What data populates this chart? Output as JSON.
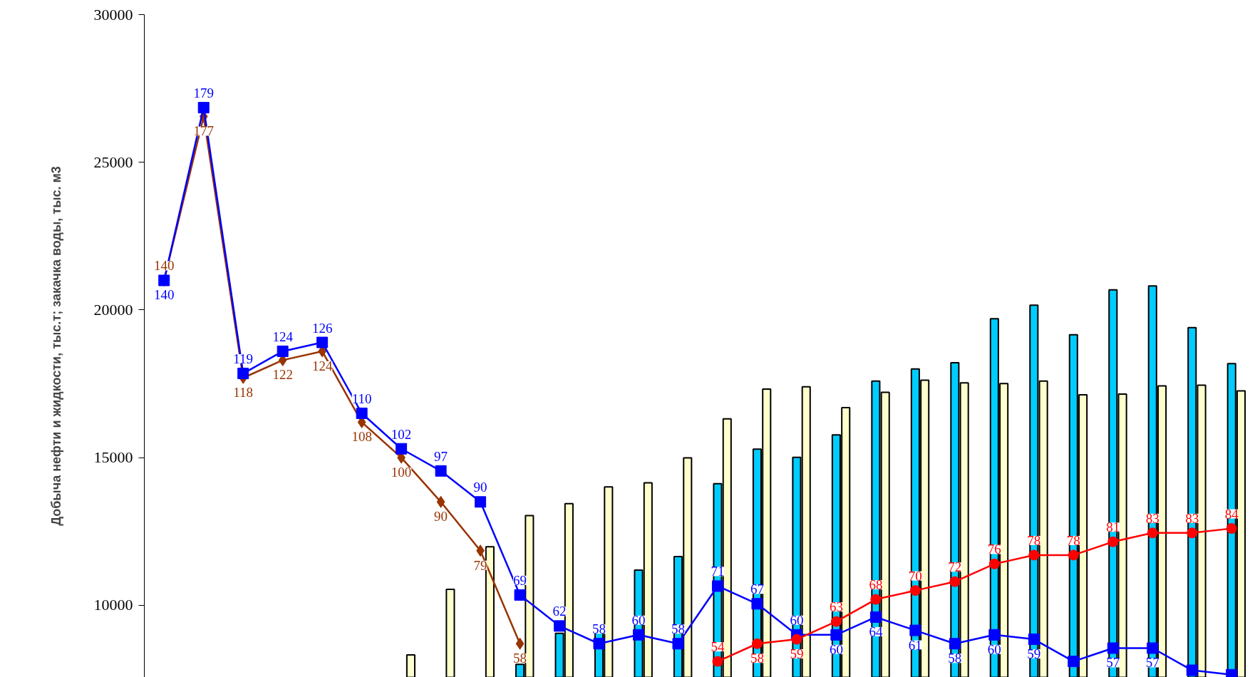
{
  "chart_data": {
    "type": "bar",
    "ylabel": "Добыча нефти и жидкости, тыс.т; закачка воды, тыс. м3",
    "categories": [
      null,
      null,
      null,
      null,
      null,
      null,
      null,
      null,
      null,
      null,
      null,
      null,
      null,
      null,
      null,
      null,
      null,
      null,
      null,
      null,
      null,
      null,
      null,
      null,
      null,
      null,
      null,
      null
    ],
    "series": [
      {
        "color": "#00ccff",
        "values": [
          null,
          null,
          null,
          null,
          null,
          null,
          null,
          null,
          null,
          8000,
          9050,
          9080,
          11190,
          11650,
          14120,
          15290,
          15010,
          15770,
          17590,
          18000,
          18210,
          19700,
          20160,
          19160,
          20680,
          20810,
          19400,
          18180
        ]
      },
      {
        "color": "#ffffcc",
        "values": [
          null,
          null,
          null,
          null,
          null,
          null,
          8320,
          10540,
          11980,
          13040,
          13440,
          14010,
          14150,
          14990,
          16310,
          17320,
          17400,
          16690,
          17210,
          17620,
          17530,
          17510,
          17590,
          17130,
          17150,
          17430,
          17450,
          17260
        ]
      },
      {
        "type": "line",
        "axis": "y2",
        "color": "#993300",
        "marker": "diamond",
        "values": [
          140,
          177,
          118,
          122,
          124,
          108,
          100,
          90,
          79,
          58,
          null,
          null,
          null,
          null,
          null,
          null,
          null,
          null,
          null,
          null,
          null,
          null,
          null,
          null,
          null,
          null,
          null,
          null
        ],
        "value_labels": [
          "140",
          "177",
          "118",
          "122",
          "124",
          "108",
          "100",
          "90",
          "79",
          "58",
          null,
          null,
          null,
          null,
          null,
          null,
          null,
          null,
          null,
          null,
          null,
          null,
          null,
          null,
          null,
          null,
          null,
          null
        ]
      },
      {
        "type": "line",
        "axis": "y2",
        "color": "#0000ff",
        "marker": "square",
        "values": [
          140,
          179,
          119,
          124,
          126,
          110,
          102,
          97,
          90,
          69,
          62,
          58,
          60,
          58,
          71,
          67,
          60,
          60,
          64,
          61,
          58,
          60,
          59,
          54,
          57,
          57,
          52,
          51
        ],
        "value_labels": [
          "140",
          "179",
          "119",
          "124",
          "126",
          "110",
          "102",
          "97",
          "90",
          "69",
          "62",
          "58",
          "60",
          "58",
          "71",
          "67",
          "60",
          "60",
          "64",
          "61",
          "58",
          "60",
          "59",
          null,
          "57",
          "57",
          null,
          null
        ]
      },
      {
        "type": "line",
        "axis": "y2",
        "color": "#ff0000",
        "marker": "circle",
        "values": [
          null,
          null,
          null,
          null,
          null,
          null,
          null,
          null,
          null,
          null,
          null,
          null,
          null,
          null,
          54,
          58,
          59,
          63,
          68,
          70,
          72,
          76,
          78,
          78,
          81,
          83,
          83,
          84
        ],
        "value_labels": [
          null,
          null,
          null,
          null,
          null,
          null,
          null,
          null,
          null,
          null,
          null,
          null,
          null,
          null,
          "54",
          "58",
          "59",
          "63",
          "68",
          "70",
          "72",
          "76",
          "78",
          "78",
          "81",
          "83",
          "83",
          "84"
        ]
      }
    ],
    "ylim": [
      7560,
      30000
    ],
    "yticks": [
      10000,
      15000,
      20000,
      25000,
      30000
    ],
    "y2lim": [
      50.4,
      200
    ],
    "tick_labels": "y",
    "grid": false
  }
}
